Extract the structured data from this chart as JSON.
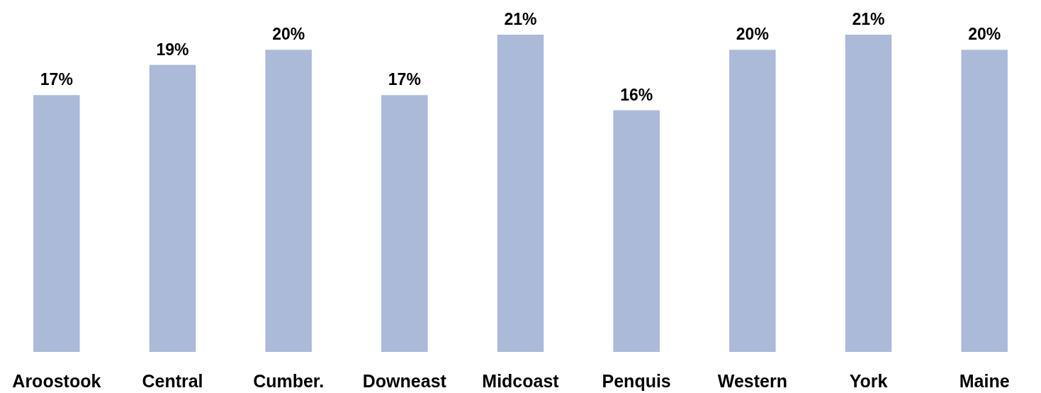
{
  "chart_data": {
    "type": "bar",
    "categories": [
      "Aroostook",
      "Central",
      "Cumber.",
      "Downeast",
      "Midcoast",
      "Penquis",
      "Western",
      "York",
      "Maine"
    ],
    "values": [
      17,
      19,
      20,
      17,
      21,
      16,
      20,
      21,
      20
    ],
    "value_labels": [
      "17%",
      "19%",
      "20%",
      "17%",
      "21%",
      "16%",
      "20%",
      "21%",
      "20%"
    ],
    "color": "#abbad8"
  }
}
